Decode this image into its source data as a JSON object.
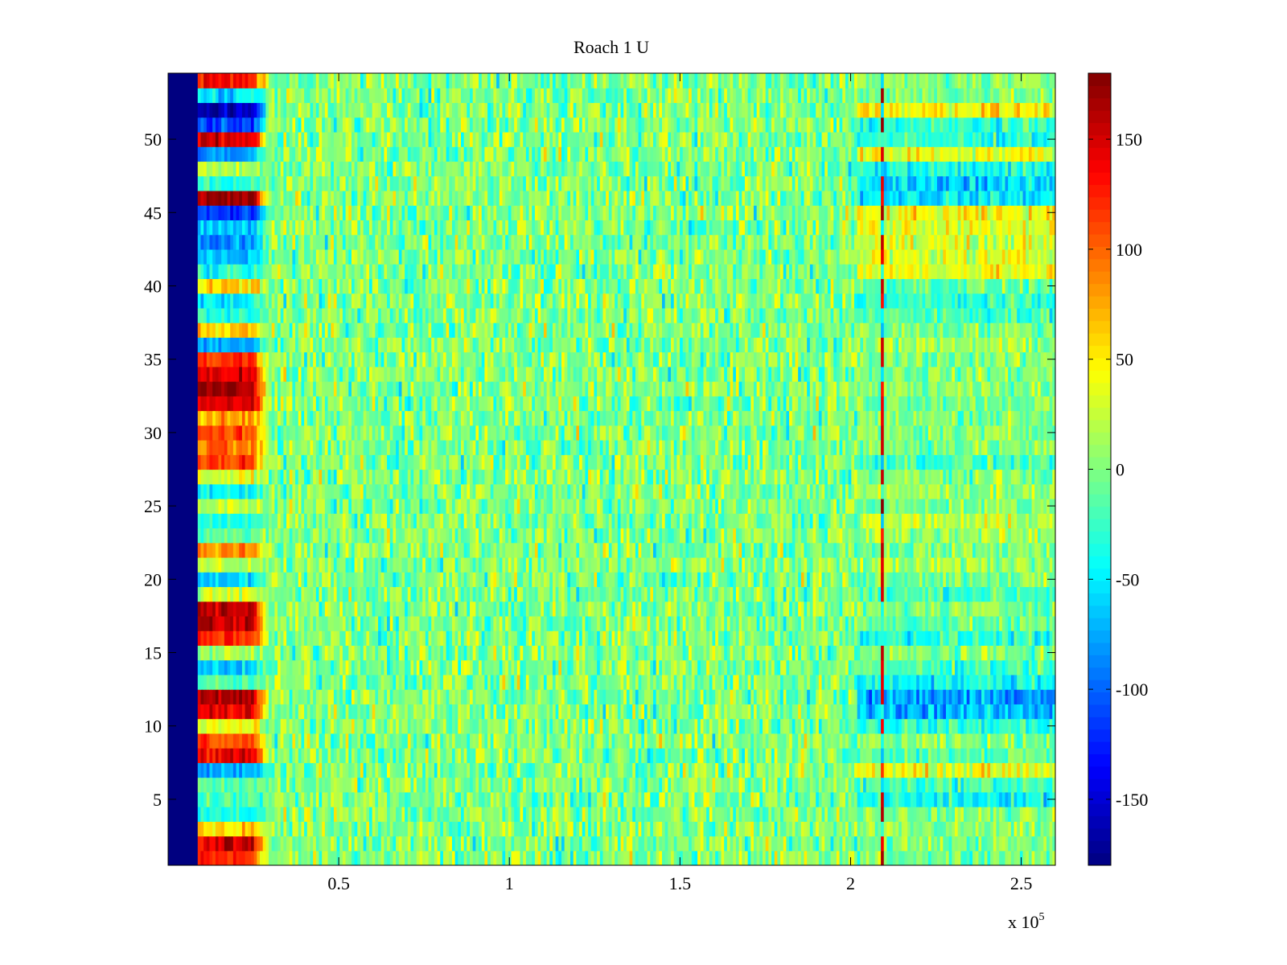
{
  "chart_data": {
    "type": "heatmap",
    "title": "Roach 1 U",
    "xlabel": "",
    "ylabel": "",
    "x_multiplier_label": "x 10",
    "x_multiplier_exponent": "5",
    "xlim": [
      0,
      2.6
    ],
    "ylim": [
      0.5,
      54.5
    ],
    "rows": 54,
    "x_ticks": [
      0.5,
      1,
      1.5,
      2,
      2.5
    ],
    "x_tick_labels": [
      "0.5",
      "1",
      "1.5",
      "2",
      "2.5"
    ],
    "y_ticks": [
      5,
      10,
      15,
      20,
      25,
      30,
      35,
      40,
      45,
      50
    ],
    "y_tick_labels": [
      "5",
      "10",
      "15",
      "20",
      "25",
      "30",
      "35",
      "40",
      "45",
      "50"
    ],
    "colorbar": {
      "colormap": "jet",
      "clim": [
        -180,
        180
      ],
      "ticks": [
        -150,
        -100,
        -50,
        0,
        50,
        100,
        150
      ],
      "tick_labels": [
        "-150",
        "-100",
        "-50",
        "0",
        "50",
        "100",
        "150"
      ]
    },
    "features": {
      "empty_region_x": [
        0,
        0.09
      ],
      "empty_value": -180,
      "early_segment_x": [
        0.09,
        0.3
      ],
      "early_row_values": {
        "1": 120,
        "2": 150,
        "3": 60,
        "4": -40,
        "5": -20,
        "6": -10,
        "7": -80,
        "8": 140,
        "9": 110,
        "10": 40,
        "11": 140,
        "12": 170,
        "13": -20,
        "14": -60,
        "15": 10,
        "16": 120,
        "17": 150,
        "18": 160,
        "19": 30,
        "20": -60,
        "21": 20,
        "22": 90,
        "23": -10,
        "24": -30,
        "25": 20,
        "26": -40,
        "27": 30,
        "28": 110,
        "29": 90,
        "30": 110,
        "31": 80,
        "32": 150,
        "33": 170,
        "34": 150,
        "35": 120,
        "36": -70,
        "37": 60,
        "38": -30,
        "39": -50,
        "40": 60,
        "41": -40,
        "42": -70,
        "43": -80,
        "44": -60,
        "45": -120,
        "46": 180,
        "47": -30,
        "48": 20,
        "49": -80,
        "50": 150,
        "51": -110,
        "52": -160,
        "53": -60,
        "54": 130
      },
      "late_segment_x": [
        2.02,
        2.6
      ],
      "late_row_values": {
        "1": 0,
        "2": 0,
        "3": 0,
        "4": 0,
        "5": -40,
        "6": -20,
        "7": 40,
        "8": -10,
        "9": 0,
        "10": -30,
        "11": -70,
        "12": -80,
        "13": -40,
        "14": -20,
        "15": 0,
        "16": -30,
        "17": -10,
        "18": 0,
        "19": -20,
        "20": 0,
        "21": 10,
        "22": 0,
        "23": 10,
        "24": 20,
        "25": 0,
        "26": 10,
        "27": 0,
        "28": -20,
        "29": 0,
        "30": 0,
        "31": 0,
        "32": 0,
        "33": 0,
        "34": 0,
        "35": 0,
        "36": 10,
        "37": 0,
        "38": -20,
        "39": -30,
        "40": -10,
        "41": 40,
        "42": 30,
        "43": 30,
        "44": 40,
        "45": 40,
        "46": -50,
        "47": -60,
        "48": -40,
        "49": 40,
        "50": -30,
        "51": -30,
        "52": 50,
        "53": 0,
        "54": 0
      },
      "vertical_streak_x": 2.09,
      "vertical_streak_value": 150,
      "background_mean": 0,
      "background_spread": 35
    }
  }
}
